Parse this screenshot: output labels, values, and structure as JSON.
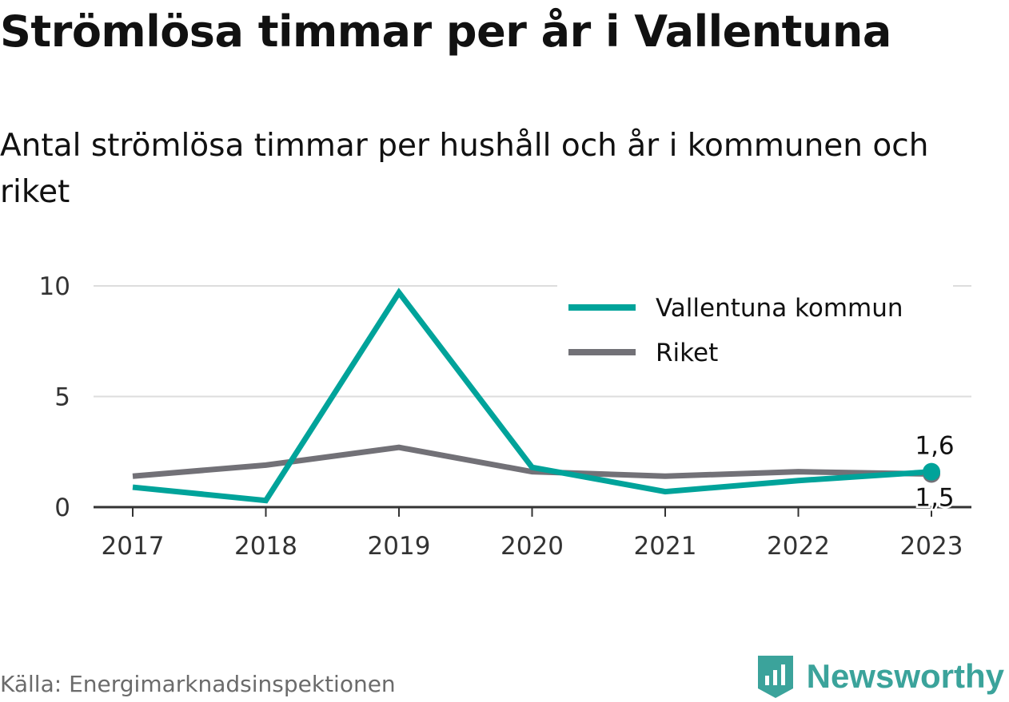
{
  "title": "Strömlösa timmar per år i Vallentuna",
  "subtitle": "Antal strömlösa timmar per hushåll och år i kommunen och riket",
  "source": "Källa: Energimarknadsinspektionen",
  "brand": {
    "name": "Newsworthy",
    "icon": "newsworthy-logo-icon",
    "color": "#3ba39b"
  },
  "chart_data": {
    "type": "line",
    "x": [
      "2017",
      "2018",
      "2019",
      "2020",
      "2021",
      "2022",
      "2023"
    ],
    "yticks": [
      0,
      5,
      10
    ],
    "ylim": [
      0,
      10
    ],
    "grid": true,
    "legend_position": "top-right",
    "series": [
      {
        "name": "Vallentuna kommun",
        "color": "#00a39a",
        "values": [
          0.9,
          0.3,
          9.7,
          1.8,
          0.7,
          1.2,
          1.6
        ]
      },
      {
        "name": "Riket",
        "color": "#727177",
        "values": [
          1.4,
          1.9,
          2.7,
          1.6,
          1.4,
          1.6,
          1.5
        ]
      }
    ],
    "end_labels": [
      "1,6",
      "1,5"
    ]
  }
}
